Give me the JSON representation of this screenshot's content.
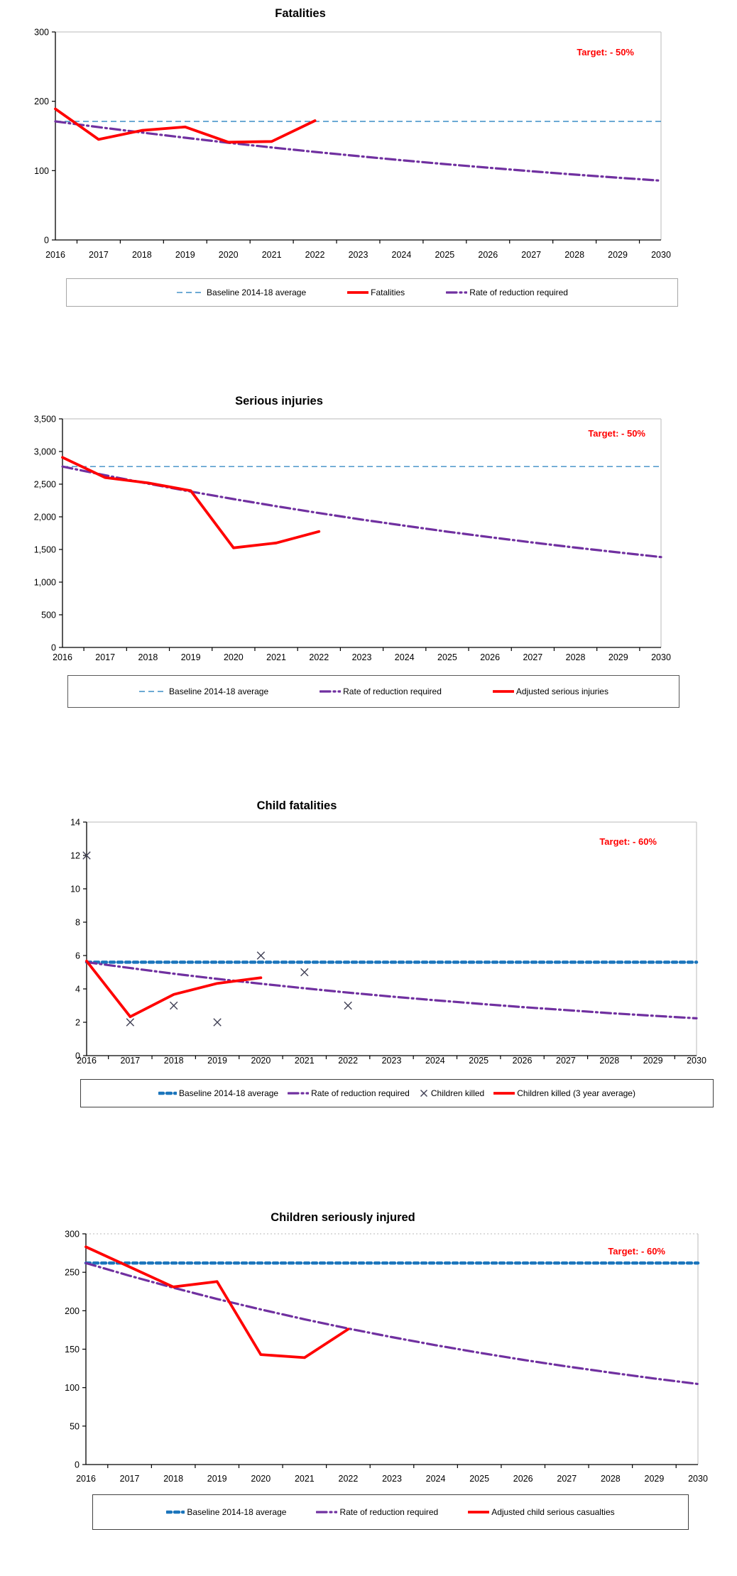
{
  "page": {
    "background": "#FFFFFF",
    "axis_color": "#000000",
    "grid_color": "#C6C6C6"
  },
  "chart_data": [
    {
      "type": "line",
      "title": "Fatalities",
      "target_annotation": "Target: - 50%",
      "target_color": "#FF0000",
      "x": [
        2016,
        2017,
        2018,
        2019,
        2020,
        2021,
        2022,
        2023,
        2024,
        2025,
        2026,
        2027,
        2028,
        2029,
        2030
      ],
      "ylim": [
        0,
        300
      ],
      "y_tick_values": [
        0,
        100,
        200,
        300
      ],
      "y_tick_labels": [
        "0",
        "100",
        "200",
        "300"
      ],
      "legend_position": "bottom",
      "series": [
        {
          "name": "Baseline 2014-18 average",
          "role": "baseline",
          "style": "dashed-thin",
          "color": "#3C8DC5",
          "value": 171
        },
        {
          "name": "Fatalities",
          "role": "actual",
          "style": "solid-thick",
          "color": "#FF0000",
          "x": [
            2016,
            2017,
            2018,
            2019,
            2020,
            2021,
            2022
          ],
          "values": [
            189,
            145,
            158,
            163,
            141,
            142,
            172
          ]
        },
        {
          "name": "Rate of reduction required",
          "role": "required",
          "style": "dash-dot",
          "color": "#7030A0",
          "x": [
            2016,
            2017,
            2018,
            2019,
            2020,
            2021,
            2022,
            2023,
            2024,
            2025,
            2026,
            2027,
            2028,
            2029,
            2030
          ],
          "values": [
            171,
            162.7,
            154.9,
            147.4,
            140.2,
            133.4,
            127,
            120.9,
            115,
            109.5,
            104.2,
            99.1,
            94.3,
            89.8,
            85.5
          ]
        }
      ]
    },
    {
      "type": "line",
      "title": "Serious injuries",
      "target_annotation": "Target: - 50%",
      "target_color": "#FF0000",
      "x": [
        2016,
        2017,
        2018,
        2019,
        2020,
        2021,
        2022,
        2023,
        2024,
        2025,
        2026,
        2027,
        2028,
        2029,
        2030
      ],
      "ylim": [
        0,
        3500
      ],
      "y_tick_values": [
        0,
        500,
        1000,
        1500,
        2000,
        2500,
        3000,
        3500
      ],
      "y_tick_labels": [
        "0",
        "500",
        "1,000",
        "1,500",
        "2,000",
        "2,500",
        "3,000",
        "3,500"
      ],
      "legend_position": "bottom",
      "series": [
        {
          "name": "Baseline 2014-18 average",
          "role": "baseline",
          "style": "dashed-thin",
          "color": "#3C8DC5",
          "value": 2770
        },
        {
          "name": "Rate of reduction required",
          "role": "required",
          "style": "dash-dot",
          "color": "#7030A0",
          "x": [
            2016,
            2017,
            2018,
            2019,
            2020,
            2021,
            2022,
            2023,
            2024,
            2025,
            2026,
            2027,
            2028,
            2029,
            2030
          ],
          "values": [
            2770,
            2636,
            2509,
            2387,
            2272,
            2162,
            2058,
            1958,
            1864,
            1773,
            1688,
            1606,
            1528,
            1455,
            1384
          ]
        },
        {
          "name": "Adjusted serious injuries",
          "role": "actual",
          "style": "solid-thick",
          "color": "#FF0000",
          "x": [
            2016,
            2017,
            2018,
            2019,
            2020,
            2021,
            2022
          ],
          "values": [
            2910,
            2600,
            2520,
            2400,
            1525,
            1600,
            1775
          ]
        }
      ]
    },
    {
      "type": "line",
      "title": "Child fatalities",
      "target_annotation": "Target: - 60%",
      "target_color": "#FF0000",
      "x": [
        2016,
        2017,
        2018,
        2019,
        2020,
        2021,
        2022,
        2023,
        2024,
        2025,
        2026,
        2027,
        2028,
        2029,
        2030
      ],
      "ylim": [
        0,
        14
      ],
      "y_tick_values": [
        0,
        2,
        4,
        6,
        8,
        10,
        12,
        14
      ],
      "y_tick_labels": [
        "0",
        "2",
        "4",
        "6",
        "8",
        "10",
        "12",
        "14"
      ],
      "legend_position": "bottom",
      "series": [
        {
          "name": "Baseline 2014-18 average",
          "role": "baseline",
          "style": "dotted-thick",
          "color": "#1B75BC",
          "value": 5.6
        },
        {
          "name": "Rate of reduction required",
          "role": "required",
          "style": "dash-dot",
          "color": "#7030A0",
          "x": [
            2016,
            2017,
            2018,
            2019,
            2020,
            2021,
            2022,
            2023,
            2024,
            2025,
            2026,
            2027,
            2028,
            2029,
            2030
          ],
          "values": [
            5.6,
            5.25,
            4.91,
            4.6,
            4.31,
            4.04,
            3.78,
            3.54,
            3.32,
            3.11,
            2.91,
            2.73,
            2.55,
            2.39,
            2.24
          ]
        },
        {
          "name": "Children killed",
          "role": "markers",
          "style": "x-marker",
          "color": "#404055",
          "x": [
            2016,
            2017,
            2018,
            2019,
            2020,
            2021,
            2022
          ],
          "values": [
            12,
            2,
            3,
            2,
            6,
            5,
            3
          ]
        },
        {
          "name": "Children killed (3 year average)",
          "role": "actual",
          "style": "solid-thick",
          "color": "#FF0000",
          "x": [
            2016,
            2017,
            2018,
            2019,
            2020
          ],
          "values": [
            5.67,
            2.33,
            3.67,
            4.33,
            4.67
          ]
        }
      ]
    },
    {
      "type": "line",
      "title": "Children seriously injured",
      "target_annotation": "Target: - 60%",
      "target_color": "#FF0000",
      "x": [
        2016,
        2017,
        2018,
        2019,
        2020,
        2021,
        2022,
        2023,
        2024,
        2025,
        2026,
        2027,
        2028,
        2029,
        2030
      ],
      "ylim": [
        0,
        300
      ],
      "y_tick_values": [
        0,
        50,
        100,
        150,
        200,
        250,
        300
      ],
      "y_tick_labels": [
        "0",
        "50",
        "100",
        "150",
        "200",
        "250",
        "300"
      ],
      "legend_position": "bottom",
      "series": [
        {
          "name": "Baseline 2014-18 average",
          "role": "baseline",
          "style": "dotted-thick",
          "color": "#1B75BC",
          "value": 262
        },
        {
          "name": "Rate of reduction required",
          "role": "required",
          "style": "dash-dot",
          "color": "#7030A0",
          "x": [
            2016,
            2017,
            2018,
            2019,
            2020,
            2021,
            2022,
            2023,
            2024,
            2025,
            2026,
            2027,
            2028,
            2029,
            2030
          ],
          "values": [
            262,
            245.4,
            229.9,
            215.3,
            201.7,
            188.9,
            176.9,
            165.7,
            155.2,
            145.4,
            136.2,
            127.6,
            119.5,
            111.9,
            104.8
          ]
        },
        {
          "name": "Adjusted child serious casualties",
          "role": "actual",
          "style": "solid-thick",
          "color": "#FF0000",
          "x": [
            2016,
            2017,
            2018,
            2019,
            2020,
            2021,
            2022
          ],
          "values": [
            283,
            257,
            231,
            238,
            143,
            139,
            176
          ]
        }
      ]
    }
  ]
}
